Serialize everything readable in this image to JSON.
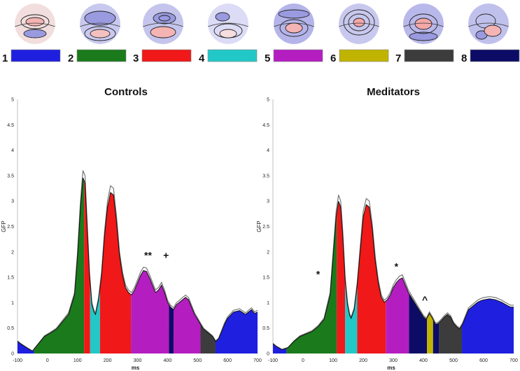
{
  "legend": {
    "maps": [
      {
        "number": "1",
        "color": "#1f1fe0",
        "topomap_icon": "topomap-1"
      },
      {
        "number": "2",
        "color": "#1b7a1b",
        "topomap_icon": "topomap-2"
      },
      {
        "number": "3",
        "color": "#f01818",
        "topomap_icon": "topomap-3"
      },
      {
        "number": "4",
        "color": "#22c8c8",
        "topomap_icon": "topomap-4"
      },
      {
        "number": "5",
        "color": "#b41ec0",
        "topomap_icon": "topomap-5"
      },
      {
        "number": "6",
        "color": "#c0b400",
        "topomap_icon": "topomap-6"
      },
      {
        "number": "7",
        "color": "#3c3c3c",
        "topomap_icon": "topomap-7"
      },
      {
        "number": "8",
        "color": "#0c0c66",
        "topomap_icon": "topomap-8"
      }
    ]
  },
  "chart_data": [
    {
      "type": "area",
      "title": "Controls",
      "xlabel": "ms",
      "ylabel": "GFP",
      "xlim": [
        -100,
        700
      ],
      "ylim": [
        0,
        5
      ],
      "xticks": [
        -100,
        0,
        100,
        200,
        300,
        400,
        500,
        600,
        700
      ],
      "yticks": [
        0,
        0.5,
        1,
        1.5,
        2,
        2.5,
        3,
        3.5,
        4,
        4.5,
        5
      ],
      "gfp": {
        "x": [
          -100,
          -90,
          -70,
          -50,
          -30,
          -10,
          10,
          30,
          50,
          70,
          90,
          100,
          110,
          118,
          125,
          132,
          140,
          148,
          155,
          160,
          170,
          180,
          190,
          200,
          210,
          220,
          230,
          240,
          250,
          260,
          270,
          280,
          290,
          300,
          310,
          320,
          330,
          340,
          350,
          360,
          370,
          380,
          390,
          400,
          410,
          420,
          430,
          440,
          450,
          460,
          470,
          480,
          490,
          500,
          510,
          520,
          530,
          540,
          550,
          560,
          570,
          580,
          590,
          600,
          620,
          640,
          660,
          680,
          690,
          700
        ],
        "y": [
          0.25,
          0.2,
          0.12,
          0.05,
          0.2,
          0.35,
          0.42,
          0.5,
          0.65,
          0.8,
          1.2,
          2.0,
          3.0,
          3.6,
          3.5,
          2.6,
          1.6,
          1.0,
          0.85,
          0.8,
          1.1,
          1.6,
          2.4,
          3.0,
          3.3,
          3.25,
          2.7,
          2.0,
          1.6,
          1.35,
          1.25,
          1.2,
          1.3,
          1.45,
          1.6,
          1.7,
          1.68,
          1.55,
          1.4,
          1.25,
          1.3,
          1.4,
          1.25,
          1.05,
          0.95,
          0.9,
          1.0,
          1.05,
          1.1,
          1.15,
          1.1,
          0.95,
          0.8,
          0.7,
          0.6,
          0.5,
          0.45,
          0.4,
          0.35,
          0.25,
          0.3,
          0.45,
          0.6,
          0.72,
          0.85,
          0.88,
          0.8,
          0.9,
          0.82,
          0.85
        ]
      },
      "segments": [
        {
          "map": 1,
          "start": -100,
          "end": -45
        },
        {
          "map": 2,
          "start": -45,
          "end": 122
        },
        {
          "map": 3,
          "start": 122,
          "end": 142
        },
        {
          "map": 4,
          "start": 142,
          "end": 175
        },
        {
          "map": 3,
          "start": 175,
          "end": 278
        },
        {
          "map": 5,
          "start": 278,
          "end": 405
        },
        {
          "map": 8,
          "start": 405,
          "end": 420
        },
        {
          "map": 5,
          "start": 420,
          "end": 510
        },
        {
          "map": 7,
          "start": 510,
          "end": 560
        },
        {
          "map": 1,
          "start": 560,
          "end": 700
        }
      ],
      "annotations": [
        {
          "text": "**",
          "x": 335,
          "y": 1.92
        },
        {
          "text": "+",
          "x": 395,
          "y": 1.92
        }
      ]
    },
    {
      "type": "area",
      "title": "Meditators",
      "xlabel": "ms",
      "ylabel": "GFP",
      "xlim": [
        -100,
        700
      ],
      "ylim": [
        0,
        5
      ],
      "xticks": [
        -100,
        0,
        100,
        200,
        300,
        400,
        500,
        600,
        700
      ],
      "yticks": [
        0,
        0.5,
        1,
        1.5,
        2,
        2.5,
        3,
        3.5,
        4,
        4.5,
        5
      ],
      "gfp": {
        "x": [
          -100,
          -90,
          -70,
          -50,
          -30,
          -10,
          10,
          30,
          50,
          70,
          90,
          100,
          110,
          118,
          125,
          132,
          140,
          148,
          155,
          160,
          170,
          180,
          190,
          200,
          210,
          220,
          230,
          240,
          250,
          260,
          270,
          280,
          290,
          300,
          310,
          320,
          330,
          340,
          350,
          360,
          370,
          380,
          390,
          400,
          410,
          420,
          430,
          440,
          450,
          460,
          470,
          480,
          490,
          500,
          510,
          520,
          530,
          540,
          550,
          560,
          570,
          580,
          590,
          600,
          620,
          640,
          660,
          680,
          690,
          700
        ],
        "y": [
          0.2,
          0.15,
          0.08,
          0.12,
          0.25,
          0.35,
          0.4,
          0.45,
          0.55,
          0.7,
          1.2,
          2.0,
          2.8,
          3.12,
          3.0,
          2.4,
          1.5,
          1.0,
          0.78,
          0.72,
          0.9,
          1.4,
          2.1,
          2.8,
          3.05,
          3.0,
          2.55,
          1.9,
          1.45,
          1.15,
          1.05,
          1.1,
          1.2,
          1.35,
          1.45,
          1.52,
          1.55,
          1.4,
          1.25,
          1.15,
          1.05,
          0.95,
          0.85,
          0.75,
          0.7,
          0.82,
          0.72,
          0.6,
          0.62,
          0.68,
          0.75,
          0.8,
          0.75,
          0.62,
          0.55,
          0.5,
          0.6,
          0.75,
          0.9,
          0.95,
          1.0,
          1.05,
          1.08,
          1.1,
          1.12,
          1.1,
          1.05,
          0.98,
          0.95,
          0.95
        ]
      },
      "segments": [
        {
          "map": 1,
          "start": -100,
          "end": -55
        },
        {
          "map": 2,
          "start": -55,
          "end": 112
        },
        {
          "map": 3,
          "start": 112,
          "end": 140
        },
        {
          "map": 4,
          "start": 140,
          "end": 180
        },
        {
          "map": 3,
          "start": 180,
          "end": 275
        },
        {
          "map": 5,
          "start": 275,
          "end": 352
        },
        {
          "map": 8,
          "start": 352,
          "end": 412
        },
        {
          "map": 6,
          "start": 412,
          "end": 432
        },
        {
          "map": 8,
          "start": 432,
          "end": 452
        },
        {
          "map": 7,
          "start": 452,
          "end": 528
        },
        {
          "map": 1,
          "start": 528,
          "end": 700
        }
      ],
      "annotations": [
        {
          "text": "*",
          "x": 50,
          "y": 1.55
        },
        {
          "text": "*",
          "x": 310,
          "y": 1.7
        },
        {
          "text": "^",
          "x": 405,
          "y": 1.05
        }
      ]
    }
  ]
}
